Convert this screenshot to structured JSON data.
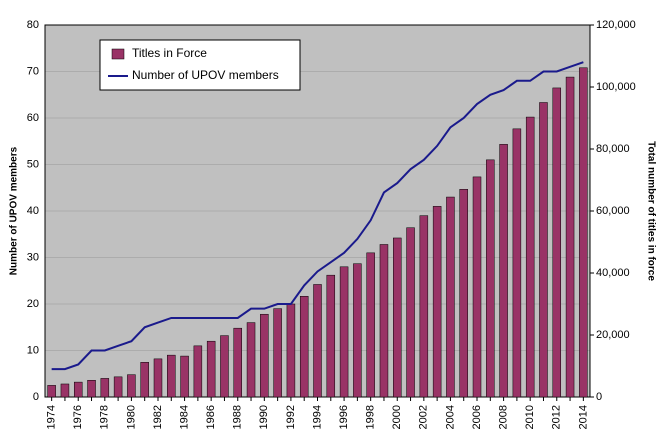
{
  "chart_data": {
    "type": "bar_line",
    "categories": [
      "1974",
      null,
      "1976",
      null,
      "1978",
      null,
      "1980",
      null,
      "1982",
      null,
      "1984",
      null,
      "1986",
      null,
      "1988",
      null,
      "1990",
      null,
      "1992",
      null,
      "1994",
      null,
      "1996",
      null,
      "1998",
      null,
      "2000",
      null,
      "2002",
      null,
      "2004",
      null,
      "2006",
      null,
      "2008",
      null,
      "2010",
      null,
      "2012",
      null,
      "2014"
    ],
    "ylabel": "Number of UPOV members",
    "y2label": "Total number of titles in force",
    "ylim": [
      0,
      80
    ],
    "yticks": [
      0,
      10,
      20,
      30,
      40,
      50,
      60,
      70,
      80
    ],
    "y2lim": [
      0,
      120000
    ],
    "y2ticks": [
      0,
      {
        "value": 20000,
        "label": "20,000"
      },
      {
        "value": 40000,
        "label": "40,000"
      },
      {
        "value": 60000,
        "label": "60,000"
      },
      {
        "value": 80000,
        "label": "80,000"
      },
      {
        "value": 100000,
        "label": "100,000"
      },
      {
        "value": 120000,
        "label": "120,000"
      }
    ],
    "legend": "upper left",
    "series": [
      {
        "name": "Titles in Force",
        "kind": "bar",
        "axis": "y2",
        "color": "#993366",
        "values": [
          3750,
          4200,
          4800,
          5400,
          6000,
          6500,
          7200,
          11200,
          12300,
          13500,
          13200,
          16500,
          18000,
          19800,
          22200,
          24000,
          26700,
          28500,
          30000,
          32500,
          36300,
          39300,
          42000,
          43000,
          46500,
          49200,
          51300,
          54600,
          58500,
          61500,
          64500,
          67000,
          71000,
          76500,
          81500,
          86500,
          90300,
          95000,
          99700,
          103200,
          106200
        ]
      },
      {
        "name": "Number of UPOV members",
        "kind": "line",
        "axis": "y",
        "color": "#1a1a8c",
        "values": [
          6,
          6,
          7,
          10,
          10,
          11,
          12,
          15,
          16,
          17,
          17,
          17,
          17,
          17,
          17,
          19,
          19,
          20,
          20,
          24,
          27,
          29,
          31,
          34,
          38,
          44,
          46,
          49,
          51,
          54,
          58,
          60,
          63,
          65,
          66,
          68,
          68,
          70,
          70,
          71,
          72
        ]
      }
    ]
  }
}
